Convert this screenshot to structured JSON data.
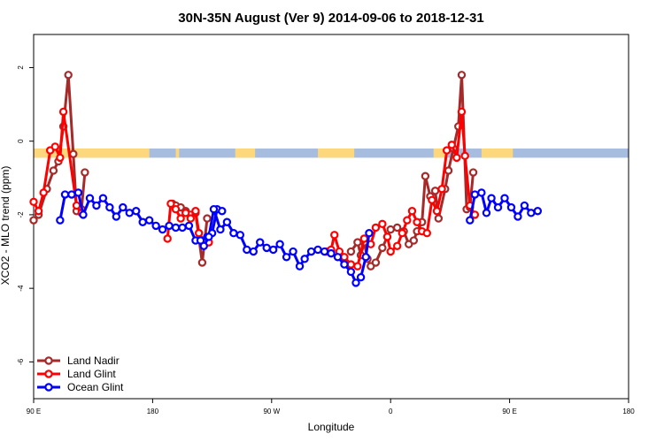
{
  "chart_data": {
    "type": "line",
    "title": "30N-35N August (Ver 9)   2014-09-06 to 2018-12-31",
    "xlabel": "Longitude",
    "ylabel": "XCO2 - MLO trend (ppm)",
    "xlim": [
      -180,
      180
    ],
    "ylim": [
      -7,
      2.9
    ],
    "x_ticks": [
      {
        "value": -180,
        "label": "90 E"
      },
      {
        "value": -108,
        "label": "180"
      },
      {
        "value": -36,
        "label": "90 W"
      },
      {
        "value": 36,
        "label": "0"
      },
      {
        "value": 108,
        "label": "90 E"
      },
      {
        "value": 180,
        "label": "180"
      }
    ],
    "y_ticks": [
      -6,
      -4,
      -2,
      0,
      2
    ],
    "land_band": {
      "y_range": [
        -0.45,
        -0.2
      ],
      "ocean_color": "#a7bddf",
      "land_color": "#fcd77c",
      "land_segments": [
        [
          -180,
          -110
        ],
        [
          -94,
          -92
        ],
        [
          -58,
          -46
        ],
        [
          -8,
          14
        ],
        [
          62,
          70
        ],
        [
          91,
          110
        ]
      ]
    },
    "legend": {
      "placement": "bottom-left",
      "entries": [
        "Land Nadir",
        "Land Glint",
        "Ocean Glint"
      ]
    },
    "series": [
      {
        "name": "Land Nadir",
        "color": "#a52a2a",
        "segments": [
          [
            [
              -180,
              -2.15
            ],
            [
              -177,
              -2.0
            ],
            [
              -172,
              -1.3
            ],
            [
              -168,
              -0.8
            ],
            [
              -165,
              -0.55
            ],
            [
              -162,
              0.4
            ],
            [
              -159,
              1.8
            ],
            [
              -156,
              -0.35
            ],
            [
              -154,
              -1.9
            ],
            [
              -151,
              -1.85
            ],
            [
              -149,
              -0.85
            ]
          ],
          [
            [
              -96,
              -1.7
            ],
            [
              -94,
              -1.75
            ],
            [
              -91,
              -1.8
            ],
            [
              -88,
              -1.9
            ],
            [
              -85,
              -2.0
            ],
            [
              -82,
              -1.95
            ],
            [
              -78,
              -3.3
            ],
            [
              -75,
              -2.1
            ]
          ],
          [
            [
              12,
              -3.0
            ],
            [
              16,
              -2.75
            ],
            [
              18,
              -3.1
            ],
            [
              20,
              -2.75
            ],
            [
              22,
              -3.2
            ],
            [
              24,
              -3.4
            ],
            [
              27,
              -3.3
            ],
            [
              31,
              -2.9
            ],
            [
              34,
              -2.6
            ],
            [
              36,
              -2.4
            ],
            [
              40,
              -2.35
            ],
            [
              44,
              -2.45
            ],
            [
              47,
              -2.8
            ],
            [
              50,
              -2.7
            ],
            [
              52,
              -2.45
            ],
            [
              55,
              -2.2
            ],
            [
              57,
              -0.95
            ],
            [
              60,
              -1.5
            ],
            [
              63,
              -1.35
            ],
            [
              65,
              -2.1
            ],
            [
              69,
              -1.3
            ],
            [
              71,
              -0.8
            ],
            [
              74,
              -0.2
            ],
            [
              77,
              0.4
            ],
            [
              79,
              1.8
            ],
            [
              82,
              -1.85
            ],
            [
              84,
              -1.8
            ],
            [
              86,
              -0.85
            ]
          ]
        ]
      },
      {
        "name": "Land Glint",
        "color": "#ff0000",
        "segments": [
          [
            [
              -180,
              -1.65
            ],
            [
              -177,
              -1.9
            ],
            [
              -174,
              -1.4
            ],
            [
              -170,
              -0.25
            ],
            [
              -167,
              -0.15
            ],
            [
              -164,
              -0.45
            ],
            [
              -162,
              0.8
            ],
            [
              -154,
              -1.75
            ],
            [
              -151,
              -1.95
            ]
          ],
          [
            [
              -99,
              -2.65
            ],
            [
              -97,
              -1.7
            ],
            [
              -94,
              -1.85
            ],
            [
              -91,
              -2.1
            ],
            [
              -88,
              -1.95
            ],
            [
              -85,
              -2.1
            ],
            [
              -82,
              -1.9
            ],
            [
              -80,
              -2.5
            ],
            [
              -77,
              -2.7
            ],
            [
              -74,
              -2.75
            ]
          ],
          [
            [
              -3,
              -3.0
            ],
            [
              0,
              -2.95
            ],
            [
              2,
              -2.55
            ],
            [
              5,
              -3.0
            ],
            [
              8,
              -3.15
            ],
            [
              12,
              -3.35
            ],
            [
              16,
              -3.4
            ],
            [
              20,
              -2.65
            ],
            [
              24,
              -2.8
            ],
            [
              27,
              -2.35
            ],
            [
              31,
              -2.25
            ],
            [
              34,
              -2.6
            ],
            [
              36,
              -3.0
            ],
            [
              40,
              -2.85
            ],
            [
              43,
              -2.5
            ],
            [
              46,
              -2.15
            ],
            [
              49,
              -1.9
            ],
            [
              52,
              -2.2
            ],
            [
              55,
              -2.45
            ],
            [
              58,
              -2.5
            ],
            [
              61,
              -1.6
            ],
            [
              64,
              -1.9
            ],
            [
              67,
              -1.3
            ],
            [
              70,
              -0.25
            ],
            [
              73,
              -0.1
            ],
            [
              76,
              -0.45
            ],
            [
              79,
              0.8
            ],
            [
              81,
              -0.4
            ],
            [
              84,
              -1.75
            ],
            [
              87,
              -2.0
            ]
          ]
        ]
      },
      {
        "name": "Ocean Glint",
        "color": "#0000ff",
        "segments": [
          [
            [
              -164,
              -2.15
            ],
            [
              -161,
              -1.45
            ],
            [
              -157,
              -1.45
            ],
            [
              -153,
              -1.4
            ],
            [
              -150,
              -2.0
            ],
            [
              -146,
              -1.55
            ],
            [
              -142,
              -1.75
            ],
            [
              -138,
              -1.55
            ],
            [
              -134,
              -1.8
            ],
            [
              -130,
              -2.05
            ],
            [
              -126,
              -1.8
            ],
            [
              -122,
              -1.95
            ],
            [
              -118,
              -1.9
            ],
            [
              -114,
              -2.2
            ],
            [
              -110,
              -2.15
            ],
            [
              -106,
              -2.3
            ],
            [
              -102,
              -2.4
            ],
            [
              -98,
              -2.3
            ],
            [
              -94,
              -2.35
            ],
            [
              -90,
              -2.35
            ],
            [
              -86,
              -2.3
            ],
            [
              -82,
              -2.7
            ],
            [
              -79,
              -2.7
            ],
            [
              -75,
              -2.6
            ],
            [
              -72,
              -2.5
            ],
            [
              -69,
              -1.85
            ],
            [
              -66,
              -1.9
            ]
          ],
          [
            [
              -77,
              -2.85
            ],
            [
              -74,
              -2.6
            ],
            [
              -71,
              -1.85
            ],
            [
              -67,
              -2.4
            ],
            [
              -63,
              -2.2
            ],
            [
              -59,
              -2.5
            ],
            [
              -55,
              -2.55
            ],
            [
              -51,
              -2.95
            ],
            [
              -47,
              -3.0
            ],
            [
              -43,
              -2.75
            ],
            [
              -39,
              -2.9
            ],
            [
              -35,
              -2.95
            ],
            [
              -31,
              -2.8
            ],
            [
              -27,
              -3.15
            ],
            [
              -23,
              -3.0
            ],
            [
              -19,
              -3.4
            ],
            [
              -16,
              -3.2
            ],
            [
              -12,
              -3.0
            ],
            [
              -8,
              -2.95
            ],
            [
              -4,
              -3.0
            ],
            [
              0,
              -3.05
            ],
            [
              4,
              -3.15
            ],
            [
              8,
              -3.35
            ],
            [
              12,
              -3.55
            ],
            [
              15,
              -3.85
            ],
            [
              18,
              -3.7
            ],
            [
              21,
              -3.15
            ],
            [
              23,
              -2.5
            ]
          ],
          [
            [
              84,
              -2.15
            ],
            [
              87,
              -1.45
            ],
            [
              91,
              -1.4
            ],
            [
              94,
              -1.95
            ],
            [
              97,
              -1.55
            ],
            [
              101,
              -1.8
            ],
            [
              105,
              -1.55
            ],
            [
              109,
              -1.8
            ],
            [
              113,
              -2.05
            ],
            [
              117,
              -1.75
            ],
            [
              121,
              -1.95
            ],
            [
              125,
              -1.9
            ]
          ]
        ]
      }
    ]
  }
}
